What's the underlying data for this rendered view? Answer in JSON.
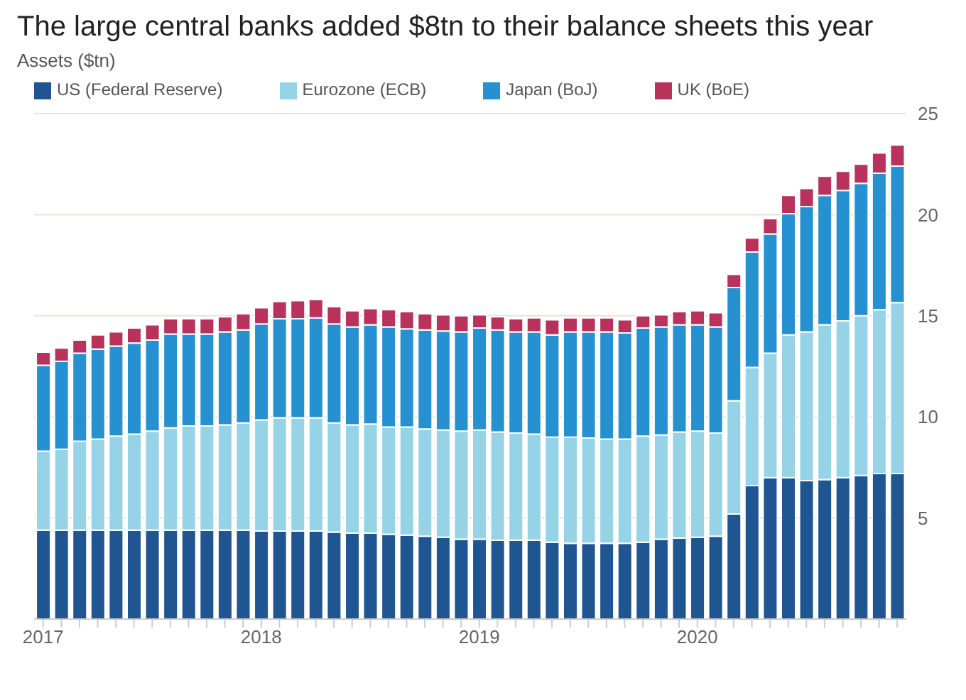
{
  "chart_data": {
    "type": "bar",
    "stacked": true,
    "title": "The large central banks added $8tn to their balance sheets this year",
    "ylabel": "Assets ($tn)",
    "categories": [
      "2017",
      null,
      null,
      null,
      null,
      null,
      null,
      null,
      null,
      null,
      null,
      null,
      "2018",
      null,
      null,
      null,
      null,
      null,
      null,
      null,
      null,
      null,
      null,
      null,
      "2019",
      null,
      null,
      null,
      null,
      null,
      null,
      null,
      null,
      null,
      null,
      null,
      "2020",
      null,
      null,
      null,
      null,
      null,
      null,
      null,
      null,
      null,
      null,
      null
    ],
    "series": [
      {
        "name": "US (Federal Reserve)",
        "color": "#1f5591",
        "values": [
          4.4,
          4.4,
          4.4,
          4.4,
          4.4,
          4.4,
          4.4,
          4.4,
          4.4,
          4.4,
          4.4,
          4.4,
          4.35,
          4.35,
          4.35,
          4.35,
          4.3,
          4.25,
          4.25,
          4.2,
          4.15,
          4.1,
          4.05,
          3.95,
          3.95,
          3.9,
          3.9,
          3.9,
          3.8,
          3.75,
          3.75,
          3.75,
          3.75,
          3.8,
          3.95,
          4.0,
          4.05,
          4.1,
          5.2,
          6.6,
          7.0,
          7.0,
          6.85,
          6.9,
          7.0,
          7.1,
          7.2,
          7.2
        ]
      },
      {
        "name": "Eurozone (ECB)",
        "color": "#96d3e6",
        "values": [
          3.9,
          4.0,
          4.4,
          4.5,
          4.65,
          4.75,
          4.9,
          5.05,
          5.15,
          5.15,
          5.2,
          5.3,
          5.5,
          5.6,
          5.6,
          5.6,
          5.4,
          5.35,
          5.4,
          5.3,
          5.35,
          5.3,
          5.3,
          5.35,
          5.4,
          5.35,
          5.3,
          5.25,
          5.2,
          5.25,
          5.2,
          5.15,
          5.15,
          5.25,
          5.15,
          5.25,
          5.25,
          5.1,
          5.6,
          5.85,
          6.15,
          7.05,
          7.35,
          7.65,
          7.75,
          7.9,
          8.1,
          8.45
        ]
      },
      {
        "name": "Japan (BoJ)",
        "color": "#2591d0",
        "values": [
          4.25,
          4.35,
          4.35,
          4.45,
          4.45,
          4.5,
          4.5,
          4.65,
          4.55,
          4.55,
          4.6,
          4.6,
          4.75,
          4.9,
          4.9,
          4.95,
          4.9,
          4.85,
          4.9,
          4.95,
          4.85,
          4.9,
          4.9,
          4.9,
          5.05,
          5.05,
          5.0,
          5.05,
          5.05,
          5.2,
          5.25,
          5.3,
          5.25,
          5.35,
          5.35,
          5.3,
          5.25,
          5.25,
          5.6,
          5.7,
          5.9,
          6.0,
          6.2,
          6.4,
          6.45,
          6.55,
          6.75,
          6.75
        ]
      },
      {
        "name": "UK (BoE)",
        "color": "#b8325c",
        "values": [
          0.65,
          0.65,
          0.65,
          0.7,
          0.7,
          0.75,
          0.75,
          0.75,
          0.75,
          0.75,
          0.75,
          0.8,
          0.8,
          0.85,
          0.9,
          0.9,
          0.85,
          0.8,
          0.8,
          0.85,
          0.85,
          0.8,
          0.8,
          0.8,
          0.65,
          0.65,
          0.65,
          0.7,
          0.75,
          0.7,
          0.7,
          0.7,
          0.65,
          0.6,
          0.6,
          0.65,
          0.7,
          0.7,
          0.65,
          0.7,
          0.75,
          0.9,
          0.9,
          0.95,
          0.95,
          0.95,
          1.0,
          1.05
        ]
      }
    ],
    "ylim": [
      0,
      25
    ],
    "yticks": [
      5,
      10,
      15,
      20,
      25
    ],
    "grid": "y",
    "legend": "top left"
  }
}
